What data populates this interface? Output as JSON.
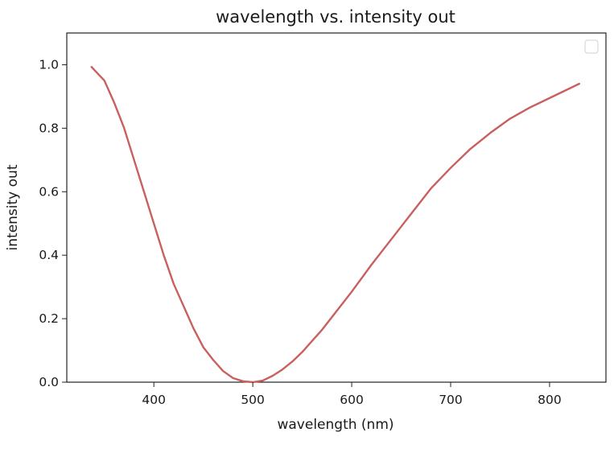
{
  "chart_data": {
    "type": "line",
    "title": "wavelength vs. intensity out",
    "xlabel": "wavelength (nm)",
    "ylabel": "intensity out",
    "xlim": [
      312,
      857
    ],
    "ylim": [
      0,
      1.1
    ],
    "xticks": [
      400,
      500,
      600,
      700,
      800
    ],
    "yticks": [
      0.0,
      0.2,
      0.4,
      0.6,
      0.8,
      1.0
    ],
    "xtick_labels": [
      "400",
      "500",
      "600",
      "700",
      "800"
    ],
    "ytick_labels": [
      "0.0",
      "0.2",
      "0.4",
      "0.6",
      "0.8",
      "1.0"
    ],
    "grid": false,
    "legend": {
      "placement": "top-right",
      "entries": []
    },
    "series": [
      {
        "color": "#c8605f",
        "x": [
          337,
          350,
          360,
          370,
          380,
          390,
          400,
          410,
          420,
          430,
          440,
          450,
          460,
          470,
          480,
          490,
          500,
          510,
          520,
          530,
          540,
          550,
          560,
          570,
          580,
          590,
          600,
          620,
          640,
          660,
          680,
          700,
          720,
          740,
          760,
          780,
          800,
          830
        ],
        "y": [
          0.993,
          0.95,
          0.88,
          0.8,
          0.7,
          0.6,
          0.5,
          0.4,
          0.31,
          0.24,
          0.17,
          0.11,
          0.07,
          0.035,
          0.013,
          0.003,
          0.0,
          0.005,
          0.02,
          0.04,
          0.065,
          0.095,
          0.13,
          0.165,
          0.205,
          0.245,
          0.285,
          0.37,
          0.45,
          0.53,
          0.61,
          0.675,
          0.735,
          0.785,
          0.83,
          0.865,
          0.895,
          0.94
        ]
      }
    ]
  }
}
